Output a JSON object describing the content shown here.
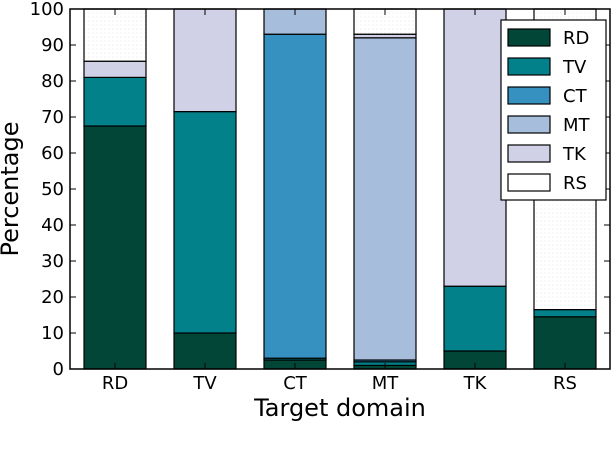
{
  "chart_data": {
    "type": "bar",
    "stacked": true,
    "categories": [
      "RD",
      "TV",
      "CT",
      "MT",
      "TK",
      "RS"
    ],
    "series": [
      {
        "name": "RD",
        "color": "#014636",
        "values": [
          67.5,
          10,
          2.5,
          1,
          5,
          14.5
        ]
      },
      {
        "name": "TV",
        "color": "#02818a",
        "values": [
          13.5,
          61.5,
          0.5,
          1,
          18,
          2
        ]
      },
      {
        "name": "CT",
        "color": "#3690c0",
        "values": [
          0,
          0,
          90,
          0.5,
          0,
          0
        ]
      },
      {
        "name": "MT",
        "color": "#a6bddb",
        "values": [
          0,
          0,
          7,
          89.5,
          0,
          0
        ]
      },
      {
        "name": "TK",
        "color": "#d0d1e6",
        "values": [
          4.5,
          28.5,
          0,
          1,
          77,
          0
        ]
      },
      {
        "name": "RS",
        "color": "#ffffff",
        "values": [
          14.5,
          0,
          0,
          7,
          0,
          83.5
        ]
      }
    ],
    "xlabel": "Target domain",
    "ylabel": "Percentage",
    "ylim": [
      0,
      100
    ],
    "yticks": [
      0,
      10,
      20,
      30,
      40,
      50,
      60,
      70,
      80,
      90,
      100
    ],
    "grid": false,
    "legend_position": "top-right"
  }
}
